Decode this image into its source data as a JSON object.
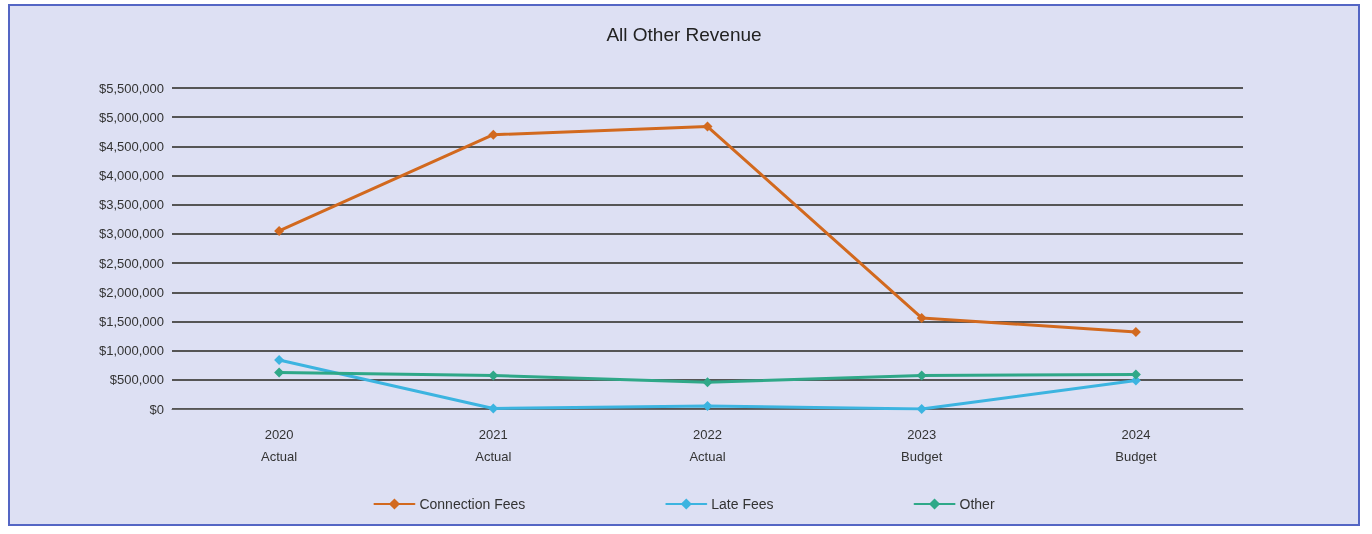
{
  "chart_data": {
    "type": "line",
    "title": "All Other Revenue",
    "categories": [
      "2020\nActual",
      "2021\nActual",
      "2022\nActual",
      "2023\nBudget",
      "2024\nBudget"
    ],
    "series": [
      {
        "name": "Connection Fees",
        "color": "#d2691e",
        "values": [
          3050000,
          4700000,
          4840000,
          1560000,
          1320000
        ]
      },
      {
        "name": "Late Fees",
        "color": "#3cb4e0",
        "values": [
          840000,
          10000,
          50000,
          0,
          490000
        ]
      },
      {
        "name": "Other",
        "color": "#2fa888",
        "values": [
          625000,
          575000,
          460000,
          575000,
          590000
        ]
      }
    ],
    "ylim": [
      0,
      5500000
    ],
    "yticks": [
      {
        "value": 0,
        "label": "$0"
      },
      {
        "value": 500000,
        "label": "$500,000"
      },
      {
        "value": 1000000,
        "label": "$1,000,000"
      },
      {
        "value": 1500000,
        "label": "$1,500,000"
      },
      {
        "value": 2000000,
        "label": "$2,000,000"
      },
      {
        "value": 2500000,
        "label": "$2,500,000"
      },
      {
        "value": 3000000,
        "label": "$3,000,000"
      },
      {
        "value": 3500000,
        "label": "$3,500,000"
      },
      {
        "value": 4000000,
        "label": "$4,000,000"
      },
      {
        "value": 4500000,
        "label": "$4,500,000"
      },
      {
        "value": 5000000,
        "label": "$5,000,000"
      },
      {
        "value": 5500000,
        "label": "$5,500,000"
      }
    ],
    "grid": "y",
    "legend": "bottom",
    "marker": "diamond",
    "line_style": "solid"
  }
}
